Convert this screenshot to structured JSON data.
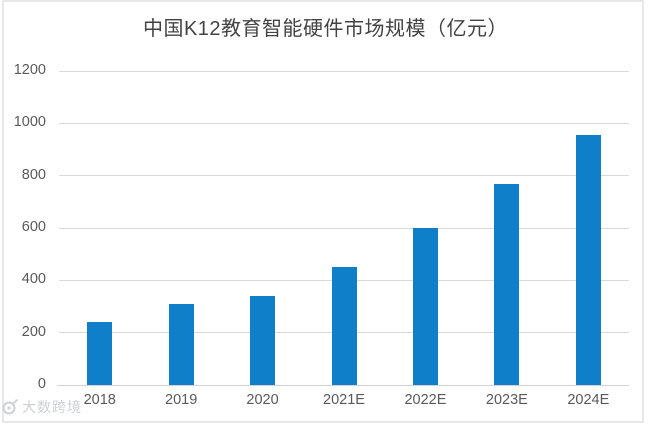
{
  "chart": {
    "watermark": {
      "icon": "snail-logo",
      "text": "大数跨境"
    }
  },
  "chart_data": {
    "type": "bar",
    "title": "中国K12教育智能硬件市场规模（亿元）",
    "categories": [
      "2018",
      "2019",
      "2020",
      "2021E",
      "2022E",
      "2023E",
      "2024E"
    ],
    "values": [
      240,
      310,
      340,
      450,
      600,
      770,
      955
    ],
    "xlabel": "",
    "ylabel": "",
    "ylim": [
      0,
      1200
    ],
    "yticks": [
      0,
      200,
      400,
      600,
      800,
      1000,
      1200
    ],
    "grid": true,
    "legend": false,
    "bar_color": "#0f7fc9",
    "gridline_color": "#d9d9d9",
    "axis_line_color": "#d3d3d3",
    "tick_label_color": "#595959",
    "title_color": "#434343"
  }
}
